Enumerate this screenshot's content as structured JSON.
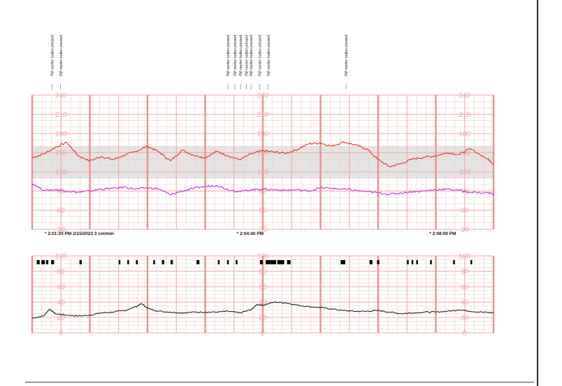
{
  "chart_data": [
    {
      "type": "line",
      "panel": "fetal-heart-rate",
      "title": "",
      "xlabel": "",
      "ylabel": "",
      "ylim": [
        30,
        240
      ],
      "y_ticks": [
        60,
        90,
        120,
        150,
        180,
        210,
        240
      ],
      "y_tick_label_groups": 3,
      "normal_band": [
        110,
        160
      ],
      "grid": true,
      "x_unit": "minutes from start of strip",
      "time_labels": [
        {
          "x": 0,
          "text": "2:01:20 PM  2/15/2022  3 cm/min"
        },
        {
          "x": 3.33,
          "text": "2:04:40 PM"
        },
        {
          "x": 6.67,
          "text": "2:08:00 PM"
        }
      ],
      "event_marks": [
        {
          "x": 0.15,
          "text": "FM marker button pressed"
        },
        {
          "x": 0.3,
          "text": "FM marker button pressed"
        },
        {
          "x": 3.2,
          "text": "FM marker button pressed"
        },
        {
          "x": 3.32,
          "text": "FM marker button pressed"
        },
        {
          "x": 3.42,
          "text": "FM marker button pressed"
        },
        {
          "x": 3.52,
          "text": "FM marker button pressed"
        },
        {
          "x": 3.6,
          "text": "FM marker button pressed"
        },
        {
          "x": 3.75,
          "text": "FM marker button pressed"
        },
        {
          "x": 3.9,
          "text": "FM marker button pressed"
        },
        {
          "x": 5.25,
          "text": "FM marker button pressed"
        }
      ],
      "series": [
        {
          "color": "#e8351f",
          "x": [
            0,
            0.2,
            0.4,
            0.6,
            0.8,
            1.0,
            1.2,
            1.4,
            1.6,
            1.8,
            2.0,
            2.2,
            2.4,
            2.6,
            2.8,
            3.0,
            3.2,
            3.4,
            3.6,
            3.8,
            4.0,
            4.2,
            4.4,
            4.6,
            4.8,
            5.0,
            5.2,
            5.4,
            5.6,
            5.8,
            6.0,
            6.2,
            6.4,
            6.6,
            6.8,
            7.0,
            7.2,
            7.4,
            7.6,
            7.9,
            8.0
          ],
          "values": [
            142,
            148,
            158,
            166,
            145,
            137,
            144,
            139,
            146,
            152,
            160,
            151,
            137,
            154,
            146,
            142,
            152,
            145,
            139,
            148,
            153,
            151,
            149,
            155,
            164,
            165,
            160,
            167,
            162,
            156,
            139,
            128,
            133,
            140,
            143,
            145,
            150,
            147,
            156,
            140,
            132
          ]
        },
        {
          "color": "#c82ed6",
          "x": [
            0,
            0.2,
            0.4,
            0.6,
            0.8,
            1.0,
            1.2,
            1.4,
            1.6,
            1.8,
            2.0,
            2.2,
            2.4,
            2.6,
            2.8,
            3.0,
            3.2,
            3.4,
            3.6,
            3.8,
            4.0,
            4.2,
            4.4,
            4.6,
            4.8,
            5.0,
            5.2,
            5.4,
            5.6,
            5.8,
            6.0,
            6.2,
            6.4,
            6.6,
            6.8,
            7.0,
            7.2,
            7.4,
            7.6,
            7.9,
            8.0
          ],
          "values": [
            102,
            91,
            92,
            90,
            88,
            90,
            93,
            94,
            96,
            93,
            95,
            93,
            84,
            90,
            94,
            97,
            99,
            92,
            89,
            92,
            93,
            92,
            91,
            92,
            90,
            95,
            94,
            93,
            91,
            89,
            87,
            85,
            87,
            89,
            90,
            92,
            93,
            91,
            88,
            87,
            86
          ]
        }
      ]
    },
    {
      "type": "line",
      "panel": "uterine-activity",
      "title": "",
      "xlabel": "",
      "ylabel": "",
      "ylim": [
        0,
        100
      ],
      "y_ticks": [
        0,
        20,
        40,
        60,
        80,
        100
      ],
      "y_tick_label_groups": 3,
      "grid": true,
      "x_unit": "minutes from start of strip",
      "marker_blocks": [
        {
          "x": 0.08,
          "w": 0.05
        },
        {
          "x": 0.16,
          "w": 0.06
        },
        {
          "x": 0.24,
          "w": 0.04
        },
        {
          "x": 0.33,
          "w": 0.05
        },
        {
          "x": 0.82,
          "w": 0.04
        },
        {
          "x": 1.5,
          "w": 0.03
        },
        {
          "x": 1.65,
          "w": 0.03
        },
        {
          "x": 1.8,
          "w": 0.03
        },
        {
          "x": 2.1,
          "w": 0.03
        },
        {
          "x": 2.25,
          "w": 0.04
        },
        {
          "x": 2.4,
          "w": 0.04
        },
        {
          "x": 2.85,
          "w": 0.05
        },
        {
          "x": 3.22,
          "w": 0.03
        },
        {
          "x": 3.38,
          "w": 0.03
        },
        {
          "x": 3.53,
          "w": 0.03
        },
        {
          "x": 3.95,
          "w": 0.05
        },
        {
          "x": 4.05,
          "w": 0.18
        },
        {
          "x": 4.25,
          "w": 0.12
        },
        {
          "x": 4.42,
          "w": 0.06
        },
        {
          "x": 5.35,
          "w": 0.08
        },
        {
          "x": 5.85,
          "w": 0.05
        },
        {
          "x": 5.98,
          "w": 0.04
        },
        {
          "x": 6.5,
          "w": 0.03
        },
        {
          "x": 6.58,
          "w": 0.03
        },
        {
          "x": 6.66,
          "w": 0.03
        },
        {
          "x": 6.9,
          "w": 0.03
        },
        {
          "x": 7.3,
          "w": 0.03
        },
        {
          "x": 7.6,
          "w": 0.03
        }
      ],
      "series": [
        {
          "color": "#111111",
          "x": [
            0,
            0.2,
            0.3,
            0.4,
            0.6,
            0.8,
            1.0,
            1.2,
            1.4,
            1.6,
            1.8,
            1.9,
            2.0,
            2.2,
            2.4,
            2.6,
            2.8,
            3.0,
            3.2,
            3.4,
            3.6,
            3.8,
            3.9,
            4.0,
            4.2,
            4.4,
            4.6,
            4.8,
            5.0,
            5.2,
            5.4,
            5.6,
            5.8,
            6.0,
            6.2,
            6.4,
            6.6,
            6.8,
            7.0,
            7.2,
            7.4,
            7.6,
            7.8,
            8.0
          ],
          "values": [
            19,
            22,
            31,
            25,
            23,
            22,
            23,
            26,
            27,
            29,
            34,
            38,
            32,
            28,
            27,
            26,
            27,
            27,
            27,
            28,
            26,
            30,
            37,
            36,
            40,
            39,
            36,
            34,
            33,
            31,
            29,
            28,
            28,
            29,
            27,
            25,
            26,
            27,
            27,
            28,
            30,
            28,
            27,
            26
          ]
        }
      ]
    }
  ]
}
